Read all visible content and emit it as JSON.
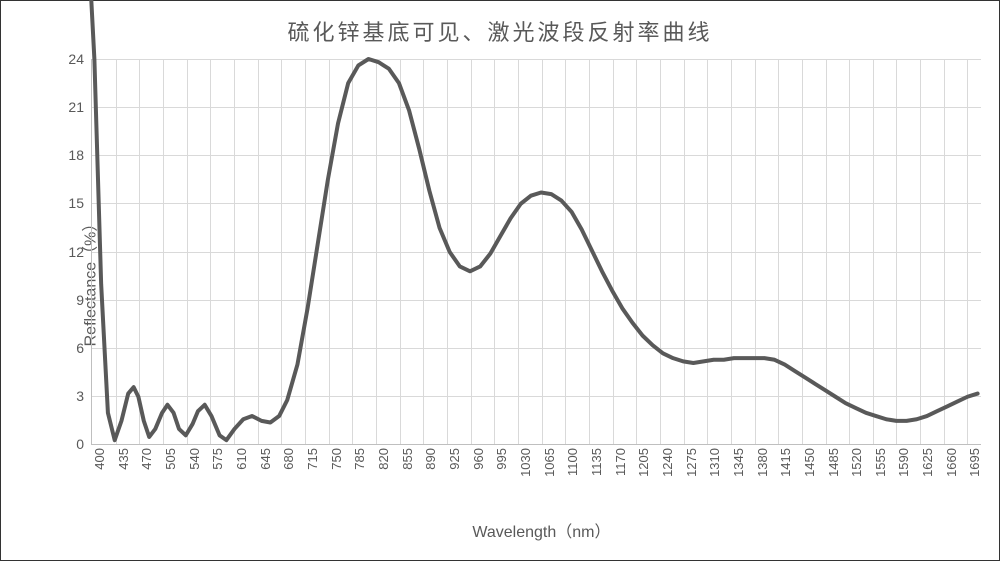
{
  "chart": {
    "type": "line",
    "title": "硫化锌基底可见、激光波段反射率曲线",
    "title_fontsize": 22,
    "title_color": "#595959",
    "x_axis": {
      "label": "Wavelength（nm）",
      "label_fontsize": 16,
      "label_color": "#595959",
      "min": 400,
      "max": 1715,
      "ticks": [
        400,
        435,
        470,
        505,
        540,
        575,
        610,
        645,
        680,
        715,
        750,
        785,
        820,
        855,
        890,
        925,
        960,
        995,
        1030,
        1065,
        1100,
        1135,
        1170,
        1205,
        1240,
        1275,
        1310,
        1345,
        1380,
        1415,
        1450,
        1485,
        1520,
        1555,
        1590,
        1625,
        1660,
        1695
      ],
      "tick_fontsize": 13,
      "tick_rotation": -90,
      "grid": true
    },
    "y_axis": {
      "label": "Reflectance（%）",
      "label_fontsize": 16,
      "label_color": "#595959",
      "min": 0,
      "max": 24,
      "ticks": [
        0,
        3,
        6,
        9,
        12,
        15,
        18,
        21,
        24
      ],
      "tick_fontsize": 14,
      "grid": true
    },
    "grid_color": "#d9d9d9",
    "axis_line_color": "#bfbfbf",
    "background": "#ffffff",
    "series": [
      {
        "name": "reflectance",
        "color": "#595959",
        "stroke_width": 4,
        "points": [
          [
            400,
            28
          ],
          [
            405,
            24
          ],
          [
            415,
            10
          ],
          [
            425,
            2
          ],
          [
            435,
            0.3
          ],
          [
            445,
            1.5
          ],
          [
            455,
            3.2
          ],
          [
            463,
            3.6
          ],
          [
            470,
            3.0
          ],
          [
            478,
            1.5
          ],
          [
            486,
            0.5
          ],
          [
            495,
            1.0
          ],
          [
            505,
            2.0
          ],
          [
            513,
            2.5
          ],
          [
            522,
            2.0
          ],
          [
            530,
            1.0
          ],
          [
            540,
            0.6
          ],
          [
            550,
            1.3
          ],
          [
            558,
            2.1
          ],
          [
            568,
            2.5
          ],
          [
            578,
            1.8
          ],
          [
            590,
            0.6
          ],
          [
            600,
            0.3
          ],
          [
            612,
            1.0
          ],
          [
            625,
            1.6
          ],
          [
            638,
            1.8
          ],
          [
            652,
            1.5
          ],
          [
            665,
            1.4
          ],
          [
            678,
            1.8
          ],
          [
            690,
            2.8
          ],
          [
            705,
            5.0
          ],
          [
            720,
            8.5
          ],
          [
            735,
            12.5
          ],
          [
            750,
            16.5
          ],
          [
            765,
            20.0
          ],
          [
            780,
            22.5
          ],
          [
            795,
            23.6
          ],
          [
            810,
            24.0
          ],
          [
            825,
            23.8
          ],
          [
            840,
            23.4
          ],
          [
            855,
            22.5
          ],
          [
            870,
            20.8
          ],
          [
            885,
            18.4
          ],
          [
            900,
            15.8
          ],
          [
            915,
            13.5
          ],
          [
            930,
            12.0
          ],
          [
            945,
            11.1
          ],
          [
            960,
            10.8
          ],
          [
            975,
            11.1
          ],
          [
            990,
            11.9
          ],
          [
            1005,
            13.0
          ],
          [
            1020,
            14.1
          ],
          [
            1035,
            15.0
          ],
          [
            1050,
            15.5
          ],
          [
            1065,
            15.7
          ],
          [
            1080,
            15.6
          ],
          [
            1095,
            15.2
          ],
          [
            1110,
            14.5
          ],
          [
            1125,
            13.4
          ],
          [
            1140,
            12.1
          ],
          [
            1155,
            10.8
          ],
          [
            1170,
            9.6
          ],
          [
            1185,
            8.5
          ],
          [
            1200,
            7.6
          ],
          [
            1215,
            6.8
          ],
          [
            1230,
            6.2
          ],
          [
            1245,
            5.7
          ],
          [
            1260,
            5.4
          ],
          [
            1275,
            5.2
          ],
          [
            1290,
            5.1
          ],
          [
            1305,
            5.2
          ],
          [
            1320,
            5.3
          ],
          [
            1335,
            5.3
          ],
          [
            1350,
            5.4
          ],
          [
            1365,
            5.4
          ],
          [
            1380,
            5.4
          ],
          [
            1395,
            5.4
          ],
          [
            1410,
            5.3
          ],
          [
            1425,
            5.0
          ],
          [
            1440,
            4.6
          ],
          [
            1455,
            4.2
          ],
          [
            1470,
            3.8
          ],
          [
            1485,
            3.4
          ],
          [
            1500,
            3.0
          ],
          [
            1515,
            2.6
          ],
          [
            1530,
            2.3
          ],
          [
            1545,
            2.0
          ],
          [
            1560,
            1.8
          ],
          [
            1575,
            1.6
          ],
          [
            1590,
            1.5
          ],
          [
            1605,
            1.5
          ],
          [
            1620,
            1.6
          ],
          [
            1635,
            1.8
          ],
          [
            1650,
            2.1
          ],
          [
            1665,
            2.4
          ],
          [
            1680,
            2.7
          ],
          [
            1695,
            3.0
          ],
          [
            1710,
            3.2
          ]
        ]
      }
    ]
  }
}
